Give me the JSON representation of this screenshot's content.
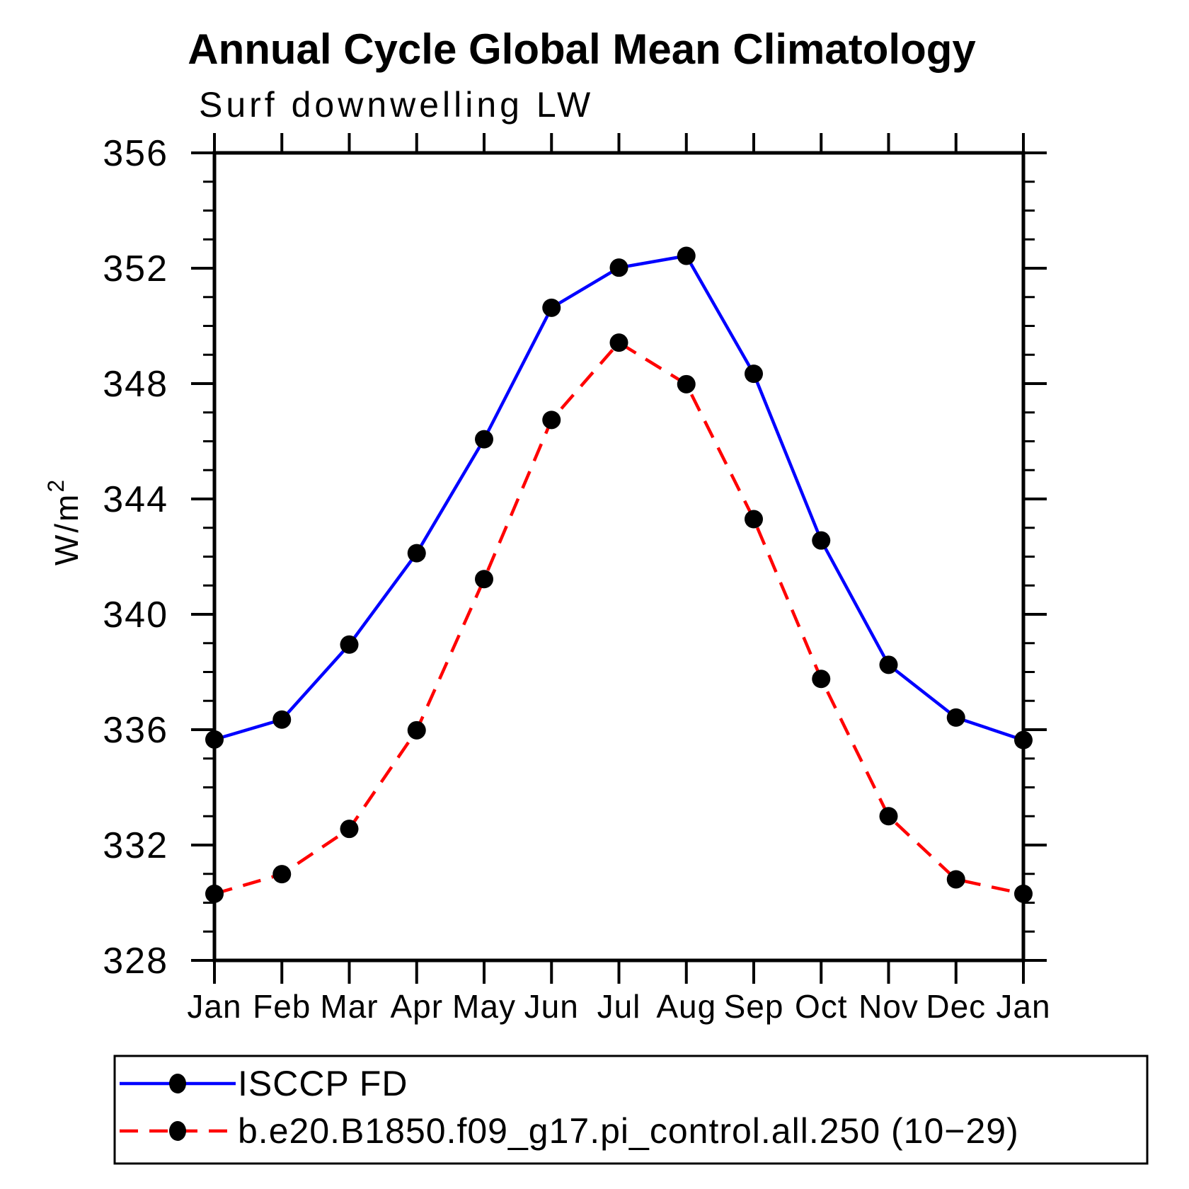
{
  "title": "Annual Cycle Global Mean Climatology",
  "subtitle": "Surf downwelling LW",
  "ylabel_base": "W/m",
  "ylabel_exp": "2",
  "chart_data": {
    "type": "line",
    "categories": [
      "Jan",
      "Feb",
      "Mar",
      "Apr",
      "May",
      "Jun",
      "Jul",
      "Aug",
      "Sep",
      "Oct",
      "Nov",
      "Dec",
      "Jan"
    ],
    "series": [
      {
        "name": "ISCCP FD",
        "color": "#0000ff",
        "line_style": "solid",
        "marker": "filled-circle",
        "marker_color": "#000000",
        "values": [
          335.66,
          336.35,
          338.95,
          342.12,
          346.07,
          350.63,
          352.02,
          352.43,
          348.34,
          342.56,
          338.25,
          336.42,
          335.64
        ]
      },
      {
        "name": "b.e20.B1850.f09_g17.pi_control.all.250 (10−29)",
        "color": "#ff0000",
        "line_style": "dashed",
        "marker": "filled-circle",
        "marker_color": "#000000",
        "values": [
          330.31,
          330.99,
          332.56,
          335.98,
          341.22,
          346.74,
          349.42,
          347.98,
          343.3,
          337.76,
          333.0,
          330.81,
          330.31
        ]
      }
    ],
    "ylim": [
      328,
      356
    ],
    "ytick_major_step": 4,
    "ytick_minor_step": 1,
    "ytick_labels": [
      "328",
      "332",
      "336",
      "340",
      "344",
      "348",
      "352",
      "356"
    ],
    "grid": "off",
    "legend_position": "bottom",
    "axis_color": "#000000"
  }
}
